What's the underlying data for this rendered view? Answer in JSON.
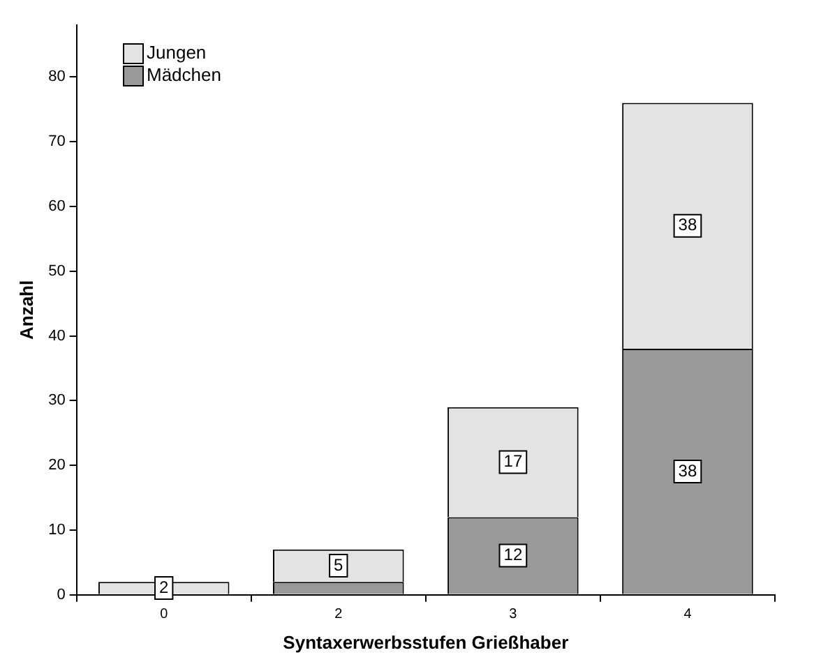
{
  "chart_data": {
    "type": "bar",
    "stacked": true,
    "xlabel": "Syntaxerwerbsstufen Grießhaber",
    "ylabel": "Anzahl",
    "categories": [
      "0",
      "2",
      "3",
      "4"
    ],
    "series": [
      {
        "name": "Mädchen",
        "color": "#999999",
        "values": [
          0,
          2,
          12,
          38
        ],
        "value_labels": [
          null,
          null,
          "12",
          "38"
        ]
      },
      {
        "name": "Jungen",
        "color": "#e3e3e3",
        "values": [
          2,
          5,
          17,
          38
        ],
        "value_labels": [
          "2",
          "5",
          "17",
          "38"
        ]
      }
    ],
    "ylim": [
      0,
      88
    ],
    "yticks": [
      0,
      10,
      20,
      30,
      40,
      50,
      60,
      70,
      80
    ],
    "grid": false,
    "legend": "top left"
  }
}
